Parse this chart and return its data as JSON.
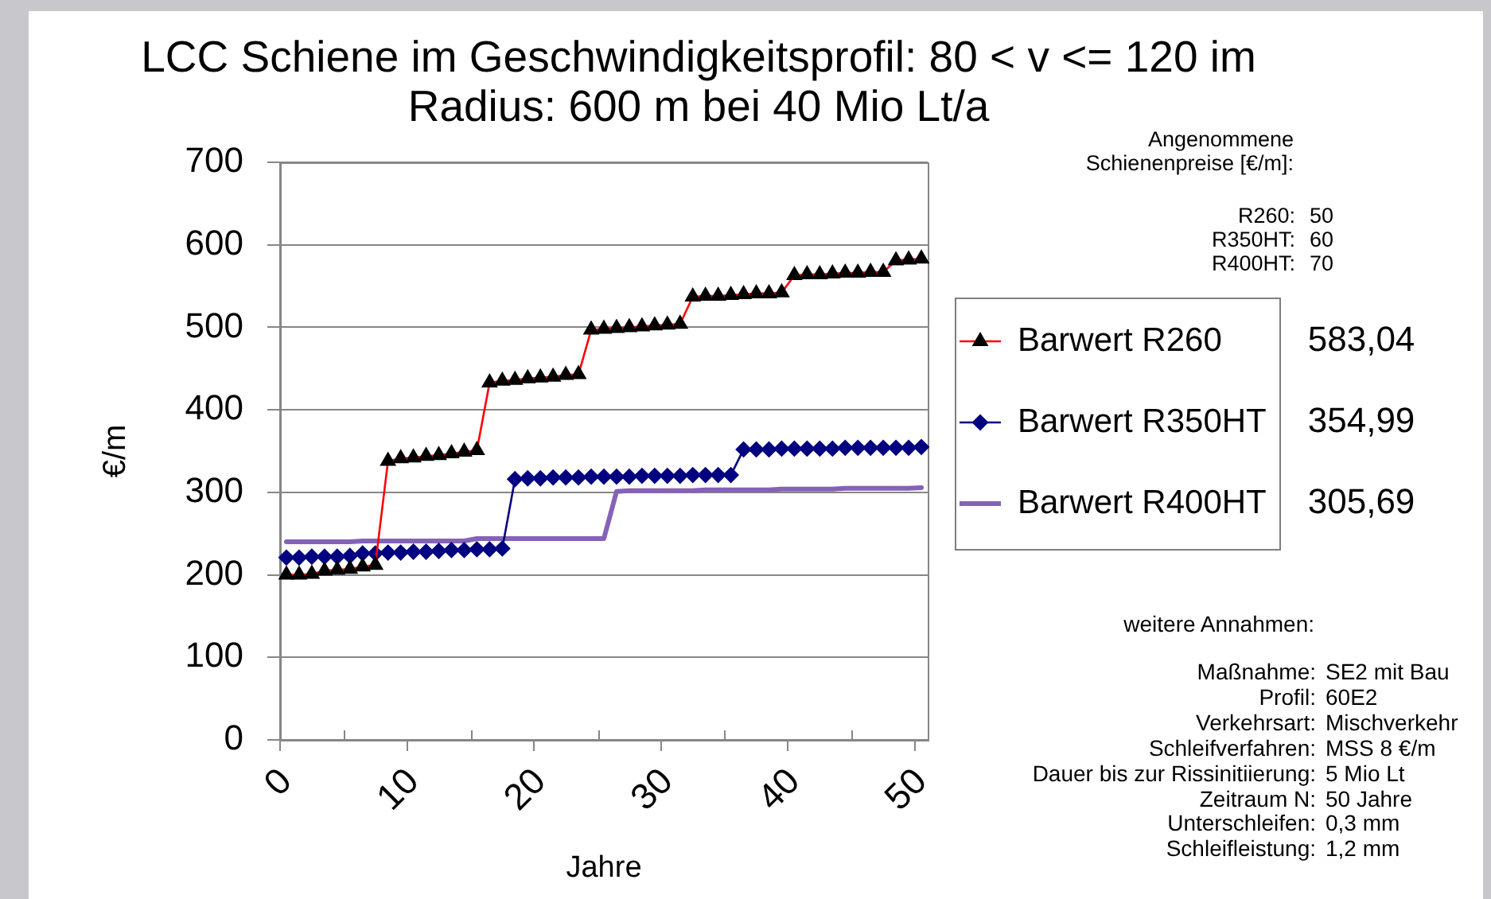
{
  "chart_data": {
    "type": "line",
    "title": "LCC Schiene im Geschwindigkeitsprofil: 80 < v <= 120 im Radius: 600 m bei 40 Mio Lt/a",
    "xlabel": "Jahre",
    "ylabel": "€/m",
    "categories": [
      "0",
      null,
      null,
      null,
      null,
      null,
      null,
      null,
      null,
      null,
      "10",
      null,
      null,
      null,
      null,
      null,
      null,
      null,
      null,
      null,
      "20",
      null,
      null,
      null,
      null,
      null,
      null,
      null,
      null,
      null,
      "30",
      null,
      null,
      null,
      null,
      null,
      null,
      null,
      null,
      null,
      "40",
      null,
      null,
      null,
      null,
      null,
      null,
      null,
      null,
      null,
      "50"
    ],
    "series": [
      {
        "name": "Barwert R260",
        "color": "#ff0000",
        "marker": "triangle",
        "colors": [
          "#000000",
          "#000000",
          "#000000",
          "#000000",
          "#000000",
          "#000000",
          "#000000",
          "#000000",
          "#000000",
          "#000000",
          "#000000",
          "#000000",
          "#000000",
          "#000000",
          "#000000",
          "#000000",
          "#000000",
          "#000000",
          "#000000",
          "#000000",
          "#000000",
          "#000000",
          "#000000",
          "#000000",
          "#000000",
          "#000000",
          "#000000",
          "#000000",
          "#000000",
          "#000000",
          "#000000",
          "#000000",
          "#000000",
          "#000000",
          "#000000",
          "#000000",
          "#000000",
          "#000000",
          "#000000",
          "#000000",
          "#000000",
          "#000000",
          "#000000",
          "#000000",
          "#000000",
          "#000000",
          "#000000",
          "#000000",
          "#000000",
          "#000000",
          "#000000"
        ],
        "values": [
          200,
          200,
          201,
          205,
          206,
          207,
          210,
          212,
          338,
          341,
          342,
          344,
          345,
          347,
          349,
          351,
          433,
          435,
          436,
          438,
          439,
          440,
          442,
          443,
          497,
          498,
          499,
          500,
          501,
          502,
          503,
          504,
          537,
          538,
          538,
          539,
          540,
          541,
          541,
          542,
          563,
          564,
          564,
          565,
          566,
          566,
          567,
          567,
          581,
          582,
          583.04
        ]
      },
      {
        "name": "Barwert R350HT",
        "color": "#000080",
        "marker": "diamond",
        "values": [
          221,
          221,
          222,
          222,
          222,
          223,
          226,
          226,
          227,
          227,
          228,
          228,
          229,
          230,
          230,
          231,
          231,
          232,
          316,
          317,
          317,
          318,
          318,
          318,
          319,
          319,
          319,
          319,
          320,
          320,
          320,
          320,
          321,
          321,
          321,
          321,
          352,
          352,
          352,
          353,
          353,
          353,
          353,
          353,
          354,
          354,
          354,
          354,
          354,
          354,
          354.99
        ]
      },
      {
        "name": "Barwert R400HT",
        "color": "#8462b8",
        "marker": "none",
        "values": [
          240,
          240,
          240,
          240,
          240,
          240,
          241,
          241,
          241,
          241,
          241,
          241,
          241,
          241,
          241,
          244,
          244,
          244,
          244,
          244,
          244,
          244,
          244,
          244,
          244,
          244,
          301,
          302,
          302,
          302,
          302,
          302,
          302,
          303,
          303,
          303,
          303,
          303,
          303,
          304,
          304,
          304,
          304,
          304,
          305,
          305,
          305,
          305,
          305,
          305,
          305.69
        ]
      }
    ],
    "ylim": [
      0,
      700
    ],
    "yticks": [
      0,
      100,
      200,
      300,
      400,
      500,
      600,
      700
    ],
    "grid": "y",
    "legend": "right",
    "annotations": [
      "Angenommene Schienenpreise [€/m]:",
      "R260: 50",
      "R350HT: 60",
      "R400HT: 70",
      "583,04",
      "354,99",
      "305,69",
      "weitere Annahmen:",
      "Maßnahme: SE2 mit Bau",
      "Profil: 60E2",
      "Verkehrsart: Mischverkehr",
      "Schleifverfahren: MSS 8 €/m",
      "Dauer bis zur Rissinitiierung: 5 Mio Lt",
      "Zeitraum N: 50 Jahre",
      "Unterschleifen: 0,3 mm",
      "Schleifleistung: 1,2 mm"
    ]
  }
}
